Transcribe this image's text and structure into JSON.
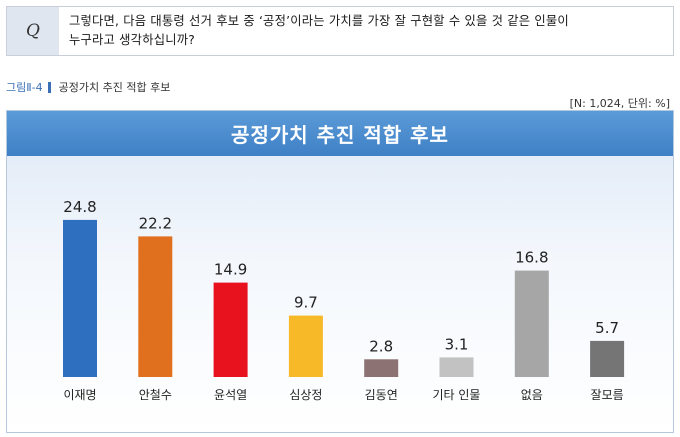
{
  "question": {
    "mark": "Q",
    "line1": "그렇다면, 다음 대통령 선거 후보 중 ‘공정’이라는 가치를 가장 잘 구현할 수 있을 것 같은 인물이",
    "line2": "누구라고 생각하십니까?"
  },
  "figure": {
    "number": "그림Ⅱ-4",
    "caption": "공정가치 추진 적합 후보",
    "note": "[N: 1,024, 단위: %]"
  },
  "chart_data": {
    "type": "bar",
    "title": "공정가치 추진 적합 후보",
    "categories": [
      "이재명",
      "안철수",
      "윤석열",
      "심상정",
      "김동연",
      "기타 인물",
      "없음",
      "잘모름"
    ],
    "values": [
      24.8,
      22.2,
      14.9,
      9.7,
      2.8,
      3.1,
      16.8,
      5.7
    ],
    "value_labels": [
      "24.8",
      "22.2",
      "14.9",
      "9.7",
      "2.8",
      "3.1",
      "16.8",
      "5.7"
    ],
    "colors": [
      "#2e6fc0",
      "#e0701e",
      "#e8121e",
      "#f7b928",
      "#8c7272",
      "#c2c2c2",
      "#a6a6a6",
      "#757575"
    ],
    "ylim": [
      0,
      27
    ],
    "grid": false,
    "legend": "none"
  }
}
